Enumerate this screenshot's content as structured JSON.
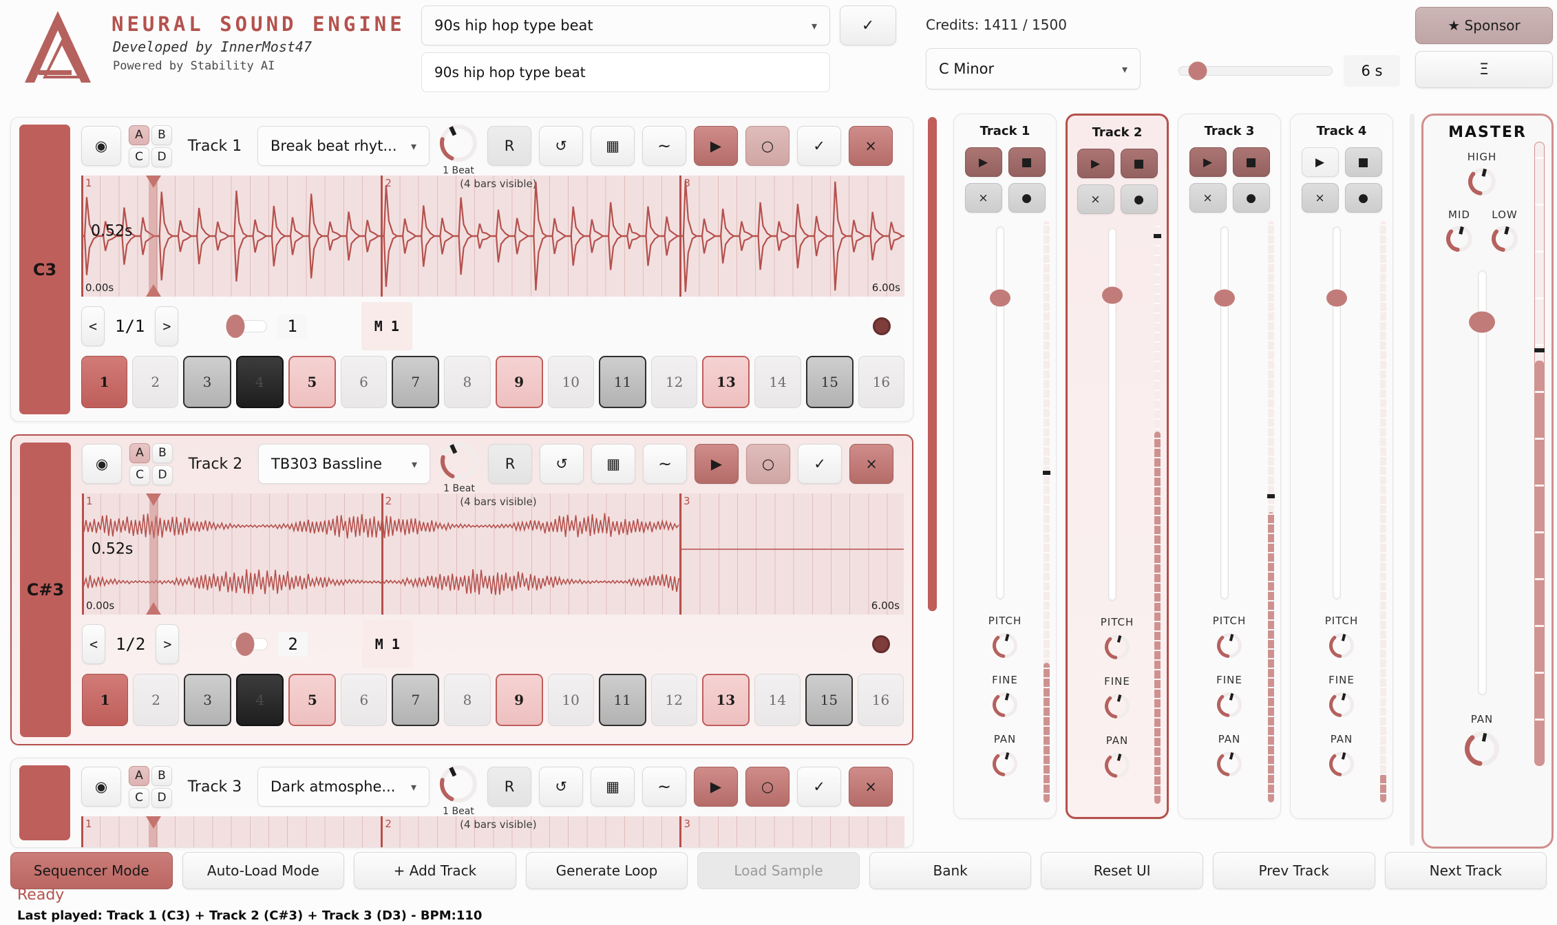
{
  "header": {
    "title": "NEURAL SOUND ENGINE",
    "developed_by": "Developed by InnerMost47",
    "powered_by": "Powered by Stability AI",
    "prompt_selected": "90s hip hop type beat",
    "prompt_input": "90s hip hop type beat",
    "confirm_label": "✓",
    "credits": "Credits: 1411 / 1500",
    "key_selected": "C Minor",
    "duration_label": "6 s",
    "duration_slider": 0.12,
    "sponsor_label": "★ Sponsor",
    "menu_label": "Ξ"
  },
  "track_buttons": {
    "radio": "◉",
    "variations": [
      "A",
      "B",
      "C",
      "D"
    ],
    "r": "R",
    "loop": "↺",
    "grid": "▦",
    "wave": "~",
    "play": "▶",
    "record": "○",
    "confirm": "✓",
    "close": "×",
    "pager_prev": "<",
    "pager_next": ">",
    "caret": "▾"
  },
  "wave_labels": {
    "bars_visible": "(4 bars visible)",
    "bar_numbers": [
      "1",
      "2",
      "3"
    ]
  },
  "tracks": [
    {
      "name": "Track 1",
      "note": "C3",
      "preset": "Break beat rhyt...",
      "beat_label": "1 Beat",
      "time_start": "0.00s",
      "time_end": "6.00s",
      "playhead_label": "0.52s",
      "playhead_pos": 0.087,
      "page": "1/1",
      "repeat_value": "1",
      "repeat_slider": 0.12,
      "memory_label": "M 1",
      "wave_type": "drums",
      "selected": false,
      "record_armed": false,
      "clipped": false,
      "steps": [
        {
          "n": "1",
          "state": "current"
        },
        {
          "n": "2",
          "state": "off"
        },
        {
          "n": "3",
          "state": "ghost"
        },
        {
          "n": "4",
          "state": "dark"
        },
        {
          "n": "5",
          "state": "accent"
        },
        {
          "n": "6",
          "state": "off"
        },
        {
          "n": "7",
          "state": "ghost"
        },
        {
          "n": "8",
          "state": "off"
        },
        {
          "n": "9",
          "state": "accent"
        },
        {
          "n": "10",
          "state": "off"
        },
        {
          "n": "11",
          "state": "ghost"
        },
        {
          "n": "12",
          "state": "off"
        },
        {
          "n": "13",
          "state": "accent"
        },
        {
          "n": "14",
          "state": "off"
        },
        {
          "n": "15",
          "state": "ghost"
        },
        {
          "n": "16",
          "state": "off"
        }
      ]
    },
    {
      "name": "Track 2",
      "note": "C#3",
      "preset": "TB303 Bassline",
      "beat_label": "1 Beat",
      "time_start": "0.00s",
      "time_end": "6.00s",
      "playhead_label": "0.52s",
      "playhead_pos": 0.087,
      "page": "1/2",
      "repeat_value": "2",
      "repeat_slider": 0.38,
      "memory_label": "M 1",
      "wave_type": "bass",
      "selected": true,
      "record_armed": false,
      "clipped": false,
      "steps": [
        {
          "n": "1",
          "state": "current"
        },
        {
          "n": "2",
          "state": "off"
        },
        {
          "n": "3",
          "state": "ghost"
        },
        {
          "n": "4",
          "state": "dark"
        },
        {
          "n": "5",
          "state": "accent"
        },
        {
          "n": "6",
          "state": "off"
        },
        {
          "n": "7",
          "state": "ghost"
        },
        {
          "n": "8",
          "state": "off"
        },
        {
          "n": "9",
          "state": "accent"
        },
        {
          "n": "10",
          "state": "off"
        },
        {
          "n": "11",
          "state": "ghost"
        },
        {
          "n": "12",
          "state": "off"
        },
        {
          "n": "13",
          "state": "accent"
        },
        {
          "n": "14",
          "state": "off"
        },
        {
          "n": "15",
          "state": "ghost"
        },
        {
          "n": "16",
          "state": "off"
        }
      ]
    },
    {
      "name": "Track 3",
      "note": "",
      "preset": "Dark atmosphe...",
      "beat_label": "1 Beat",
      "playhead_pos": 0.087,
      "wave_type": "sliver",
      "selected": false,
      "record_armed": true,
      "clipped": true,
      "steps": []
    }
  ],
  "mixer": {
    "channels": [
      {
        "label": "Track 1",
        "selected": false,
        "transport_active": true,
        "volume": 0.19,
        "peak": 0.43,
        "fill": 0.24
      },
      {
        "label": "Track 2",
        "selected": true,
        "transport_active": true,
        "volume": 0.18,
        "peak": 0.02,
        "fill": 0.64
      },
      {
        "label": "Track 3",
        "selected": false,
        "transport_active": true,
        "volume": 0.19,
        "peak": 0.47,
        "fill": 0.5
      },
      {
        "label": "Track 4",
        "selected": false,
        "transport_active": false,
        "volume": 0.19,
        "peak": null,
        "fill": 0.05
      }
    ],
    "knob_labels": [
      "PITCH",
      "FINE",
      "PAN"
    ],
    "channel_buttons": {
      "play": "▶",
      "stop": "■",
      "clear": "×",
      "record": "●"
    }
  },
  "master": {
    "title": "MASTER",
    "eq_labels": {
      "high": "HIGH",
      "mid": "MID",
      "low": "LOW"
    },
    "pan_label": "PAN",
    "volume": 0.12,
    "meter": {
      "peak": 0.33,
      "fill": 0.65
    }
  },
  "bottom_bar": {
    "buttons": [
      {
        "label": "Sequencer Mode",
        "state": "active"
      },
      {
        "label": "Auto-Load Mode",
        "state": "normal"
      },
      {
        "label": "+ Add Track",
        "state": "normal"
      },
      {
        "label": "Generate Loop",
        "state": "normal"
      },
      {
        "label": "Load Sample",
        "state": "disabled"
      },
      {
        "label": "Bank",
        "state": "normal"
      },
      {
        "label": "Reset UI",
        "state": "normal"
      },
      {
        "label": "Prev Track",
        "state": "normal"
      },
      {
        "label": "Next Track",
        "state": "normal"
      }
    ]
  },
  "status": {
    "ready": "Ready",
    "last_played": "Last played: Track 1 (C3) + Track 2 (C#3) + Track 3 (D3) - BPM:110"
  },
  "colors": {
    "accent": "#b5504c",
    "accent_soft": "#cf8f8c",
    "wave_bg": "#f2e0e0",
    "step_active": "#c96b67",
    "meter_fill": "#cd9290"
  }
}
